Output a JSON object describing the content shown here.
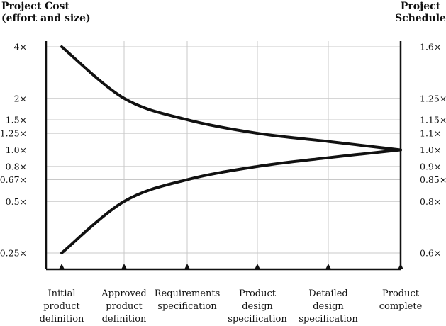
{
  "chart_data": {
    "type": "line",
    "title_left": [
      "Project Cost",
      "(effort and size)"
    ],
    "title_right": [
      "Project",
      "Schedule"
    ],
    "categories": [
      [
        "Initial",
        "product",
        "definition"
      ],
      [
        "Approved",
        "product",
        "definition"
      ],
      [
        "Requirements",
        "specification"
      ],
      [
        "Product",
        "design",
        "specification"
      ],
      [
        "Detailed",
        "design",
        "specification"
      ],
      [
        "Product",
        "complete"
      ]
    ],
    "left_ticks": [
      {
        "label": "4×",
        "value": 4
      },
      {
        "label": "2×",
        "value": 2
      },
      {
        "label": "1.5×",
        "value": 1.5
      },
      {
        "label": "1.25×",
        "value": 1.25
      },
      {
        "label": "1.0×",
        "value": 1.0
      },
      {
        "label": "0.8×",
        "value": 0.8
      },
      {
        "label": "0.67×",
        "value": 0.67
      },
      {
        "label": "0.5×",
        "value": 0.5
      },
      {
        "label": "0.25×",
        "value": 0.25
      }
    ],
    "right_ticks": [
      {
        "label": "1.6×",
        "value": 1.6
      },
      {
        "label": "1.25×",
        "value": 1.25
      },
      {
        "label": "1.15×",
        "value": 1.15
      },
      {
        "label": "1.1×",
        "value": 1.1
      },
      {
        "label": "1.0×",
        "value": 1.0
      },
      {
        "label": "0.9×",
        "value": 0.9
      },
      {
        "label": "0.85×",
        "value": 0.85
      },
      {
        "label": "0.8×",
        "value": 0.8
      },
      {
        "label": "0.6×",
        "value": 0.6
      }
    ],
    "y_scale": "log",
    "ylim": [
      0.18,
      5
    ],
    "series": [
      {
        "values": [
          4,
          2,
          1.5,
          1.25,
          1.12,
          1.0
        ]
      },
      {
        "values": [
          0.25,
          0.5,
          0.67,
          0.8,
          0.9,
          1.0
        ]
      }
    ],
    "grid": true
  }
}
